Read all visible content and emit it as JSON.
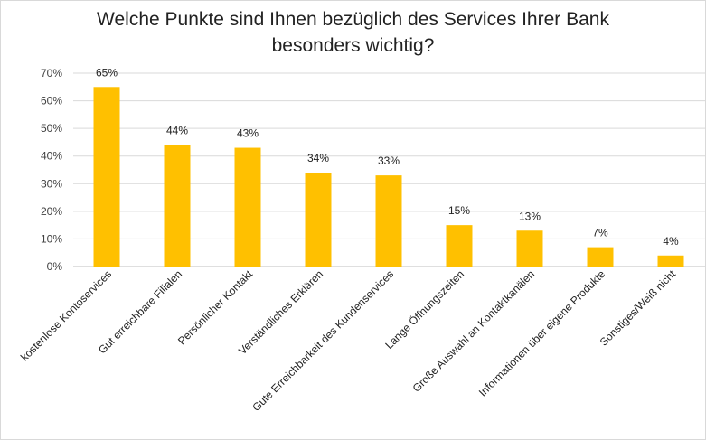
{
  "chart_data": {
    "type": "bar",
    "title": "Welche Punkte sind Ihnen bezüglich des Services Ihrer Bank\nbesonders wichtig?",
    "xlabel": "",
    "ylabel": "",
    "ylim": [
      0,
      70
    ],
    "yticks": [
      "0%",
      "10%",
      "20%",
      "30%",
      "40%",
      "50%",
      "60%",
      "70%"
    ],
    "grid": true,
    "legend": "none",
    "bar_color": "#FFC000",
    "categories": [
      "kostenlose Kontoservices",
      "Gut erreichbare Filialen",
      "Persönlicher Kontakt",
      "Verständliches Erklären",
      "Gute Erreichbarkeit des Kundenservices",
      "Lange Öffnungszeiten",
      "Große Auswahl an Kontaktkanälen",
      "Informationen über eigene Produkte",
      "Sonstiges/Weiß nicht"
    ],
    "values": [
      65,
      44,
      43,
      34,
      33,
      15,
      13,
      7,
      4
    ],
    "value_labels": [
      "65%",
      "44%",
      "43%",
      "34%",
      "33%",
      "15%",
      "13%",
      "7%",
      "4%"
    ]
  }
}
